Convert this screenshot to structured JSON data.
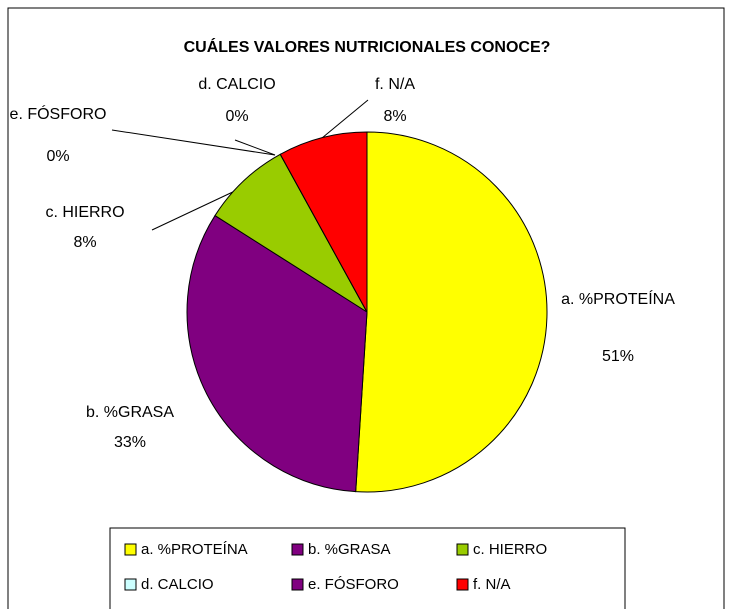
{
  "chart_data": {
    "type": "pie",
    "title": "CUÁLES VALORES NUTRICIONALES CONOCE?",
    "categories": [
      "a. %PROTEÍNA",
      "b. %GRASA",
      "c. HIERRO",
      "d. CALCIO",
      "e. FÓSFORO",
      "f. N/A"
    ],
    "values": [
      51,
      33,
      8,
      0,
      0,
      8
    ],
    "value_labels": [
      "51%",
      "33%",
      "8%",
      "0%",
      "0%",
      "8%"
    ],
    "colors": [
      "#ffff00",
      "#800080",
      "#99cc00",
      "#ccffff",
      "#800080",
      "#ff0000"
    ],
    "legend": "bottom"
  }
}
